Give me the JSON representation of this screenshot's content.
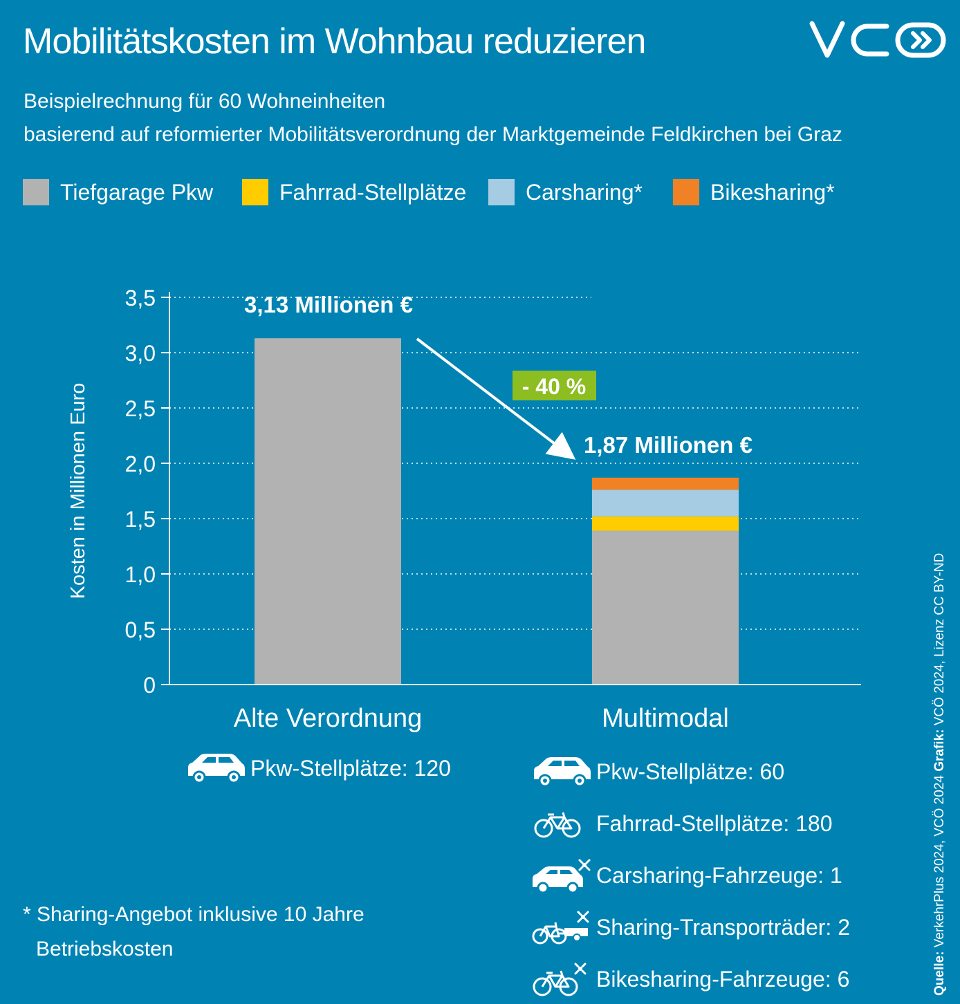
{
  "header": {
    "title": "Mobilitätskosten im Wohnbau reduzieren",
    "logo_text": "VCÖ",
    "subtitle_line1": "Beispielrechnung für 60 Wohneinheiten",
    "subtitle_line2": "basierend auf reformierter Mobilitätsverordnung der Marktgemeinde Feldkirchen bei Graz"
  },
  "legend": [
    {
      "label": "Tiefgarage Pkw",
      "color": "#b2b2b2"
    },
    {
      "label": "Fahrrad-Stellplätze",
      "color": "#ffcc00"
    },
    {
      "label": "Carsharing*",
      "color": "#a6cce3"
    },
    {
      "label": "Bikesharing*",
      "color": "#f08125"
    }
  ],
  "chart_data": {
    "type": "bar",
    "stacked": true,
    "categories": [
      "Alte Verordnung",
      "Multimodal"
    ],
    "series": [
      {
        "name": "Tiefgarage Pkw",
        "values": [
          3.13,
          1.39
        ],
        "color": "#b2b2b2"
      },
      {
        "name": "Fahrrad-Stellplätze",
        "values": [
          0,
          0.13
        ],
        "color": "#ffcc00"
      },
      {
        "name": "Carsharing*",
        "values": [
          0,
          0.24
        ],
        "color": "#a6cce3"
      },
      {
        "name": "Bikesharing*",
        "values": [
          0,
          0.11
        ],
        "color": "#f08125"
      }
    ],
    "ylabel": "Kosten in Millionen Euro",
    "ylim": [
      0,
      3.5
    ],
    "yticks": [
      "0",
      "0,5",
      "1,0",
      "1,5",
      "2,0",
      "2,5",
      "3,0",
      "3,5"
    ],
    "grid": true,
    "total_labels": [
      "3,13 Millionen €",
      "1,87 Millionen €"
    ],
    "annotation": {
      "text": "- 40 %",
      "color": "#8cbd21"
    }
  },
  "details": {
    "left": [
      {
        "icon": "car-icon",
        "text": "Pkw-Stellplätze: 120"
      }
    ],
    "right": [
      {
        "icon": "car-icon",
        "text": "Pkw-Stellplätze: 60"
      },
      {
        "icon": "bicycle-icon",
        "text": "Fahrrad-Stellplätze: 180"
      },
      {
        "icon": "sharing-car-icon",
        "text": "Carsharing-Fahrzeuge: 1"
      },
      {
        "icon": "sharing-cargo-bike-icon",
        "text": "Sharing-Transporträder: 2"
      },
      {
        "icon": "sharing-bicycle-icon",
        "text": "Bikesharing-Fahrzeuge: 6"
      }
    ]
  },
  "footnote": {
    "line1": "* Sharing-Angebot inklusive 10 Jahre",
    "line2": "Betriebskosten"
  },
  "source": {
    "label1": "Quelle:",
    "text1": " VerkehrPlus 2024, VCÖ 2024 ",
    "label2": "Grafik:",
    "text2": " VCÖ 2024, Lizenz CC BY-ND"
  }
}
